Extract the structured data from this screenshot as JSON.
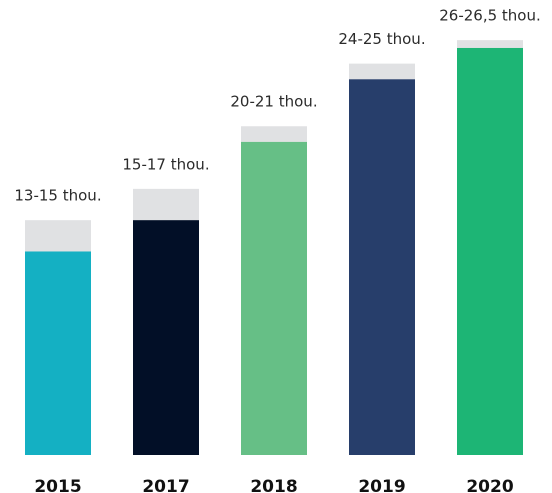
{
  "chart_data": {
    "type": "range_bar",
    "categories": [
      "2015",
      "2017",
      "2018",
      "2019",
      "2020"
    ],
    "values": [
      13,
      15,
      20,
      24,
      26
    ],
    "values_high": [
      15,
      17,
      21,
      25,
      26.5
    ],
    "value_labels": [
      "13-15 thou.",
      "15-17 thou.",
      "20-21 thou.",
      "24-25 thou.",
      "26-26,5 thou."
    ],
    "colors": [
      "#14b0c3",
      "#020f27",
      "#66bf86",
      "#273e6b",
      "#1db575"
    ],
    "range_color": "#e0e1e3",
    "ylim": [
      0,
      29
    ]
  }
}
